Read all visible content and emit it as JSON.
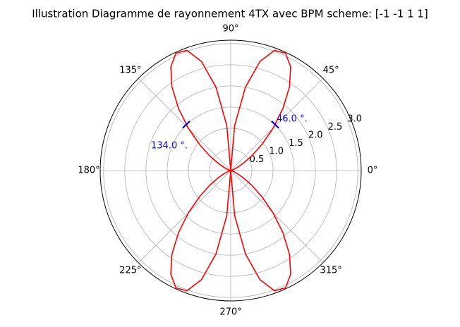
{
  "chart_data": {
    "type": "polar",
    "title": "Illustration Diagramme de rayonnement 4TX avec BPM scheme: [-1 -1  1  1]",
    "theta": [
      0,
      5,
      10,
      15,
      20,
      25,
      30,
      35,
      40,
      45,
      50,
      55,
      60,
      65,
      70,
      75,
      80,
      85,
      90,
      95,
      100,
      105,
      110,
      115,
      120,
      125,
      130,
      135,
      140,
      145,
      150,
      155,
      160,
      165,
      170,
      175,
      180,
      185,
      190,
      195,
      200,
      205,
      210,
      215,
      220,
      225,
      230,
      235,
      240,
      245,
      250,
      255,
      260,
      265,
      270,
      275,
      280,
      285,
      290,
      295,
      300,
      305,
      310,
      315,
      320,
      325,
      330,
      335,
      340,
      345,
      350,
      355,
      360
    ],
    "series": [
      {
        "color": "#ff0000",
        "values": [
          0,
          0.0003,
          0.0046,
          0.0229,
          0.0714,
          0.17,
          0.342,
          0.603,
          0.962,
          1.413,
          1.918,
          2.42,
          2.828,
          3.058,
          3.022,
          2.669,
          1.998,
          1.071,
          0,
          1.071,
          1.998,
          2.669,
          3.022,
          3.058,
          2.828,
          2.42,
          1.918,
          1.413,
          0.962,
          0.603,
          0.342,
          0.17,
          0.0714,
          0.0229,
          0.0046,
          0.0003,
          0,
          0.0003,
          0.0046,
          0.0229,
          0.0714,
          0.17,
          0.342,
          0.603,
          0.962,
          1.413,
          1.918,
          2.42,
          2.828,
          3.058,
          3.022,
          2.669,
          1.998,
          1.071,
          0,
          1.071,
          1.998,
          2.669,
          3.022,
          3.058,
          2.828,
          2.42,
          1.918,
          1.413,
          0.962,
          0.603,
          0.342,
          0.17,
          0.0714,
          0.0229,
          0.0046,
          0.0003,
          0
        ]
      }
    ],
    "markers": [
      {
        "theta": 46,
        "r": 1.51,
        "label": "46.0 °.",
        "color": "#0000ff"
      },
      {
        "theta": 134,
        "r": 1.51,
        "label": "134.0 °.",
        "color": "#0000ff"
      }
    ],
    "rlim": [
      0,
      3.08
    ],
    "rticks": [
      0.5,
      {
        "value": 1,
        "label": "1.0"
      },
      1.5,
      {
        "value": 2,
        "label": "2.0"
      },
      2.5,
      {
        "value": 3,
        "label": "3.0"
      }
    ],
    "thetaticks": [
      {
        "value": 0,
        "label": "0°"
      },
      {
        "value": 45,
        "label": "45°"
      },
      {
        "value": 90,
        "label": "90°"
      },
      {
        "value": 135,
        "label": "135°"
      },
      {
        "value": 180,
        "label": "180°"
      },
      {
        "value": 225,
        "label": "225°"
      },
      {
        "value": 270,
        "label": "270°"
      },
      {
        "value": 315,
        "label": "315°"
      }
    ],
    "grid": true
  }
}
